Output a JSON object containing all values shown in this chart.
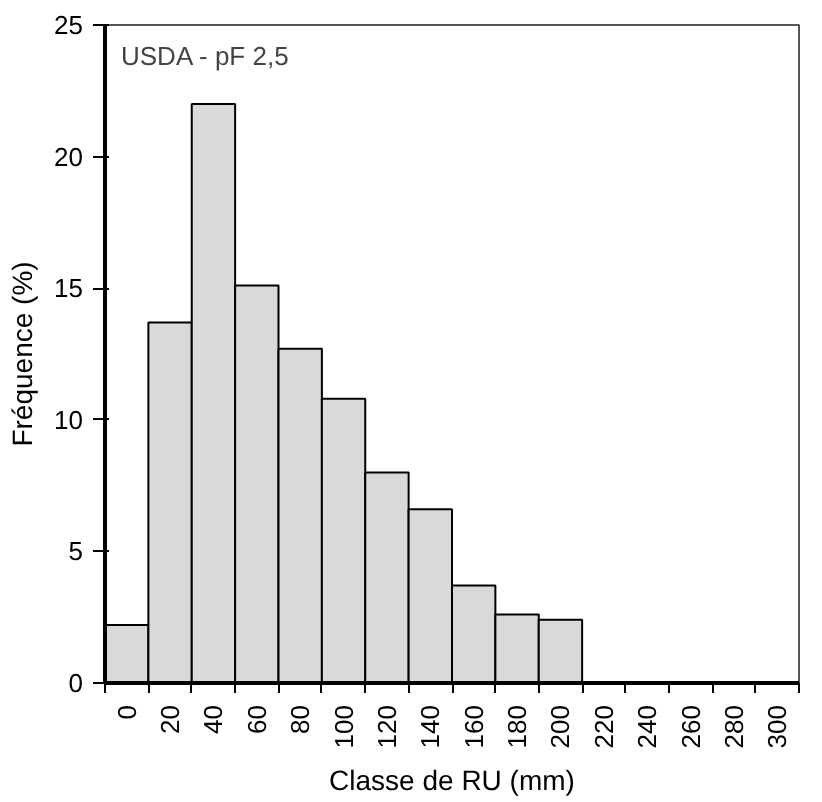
{
  "chart_data": {
    "type": "bar",
    "xlabel": "Classe de RU (mm)",
    "ylabel": "Fréquence (%)",
    "annotations": [
      "USDA - pF 2,5"
    ],
    "categories": [
      "0",
      "20",
      "40",
      "60",
      "80",
      "100",
      "120",
      "140",
      "160",
      "180",
      "200",
      "220",
      "240",
      "260",
      "280",
      "300"
    ],
    "values": [
      2.2,
      13.7,
      22,
      15.1,
      12.7,
      10.8,
      8.0,
      6.6,
      3.7,
      2.6,
      2.4,
      null,
      null,
      null,
      null,
      null
    ],
    "color": "#d9d9d9",
    "ylim": [
      0,
      25
    ],
    "yticks": [
      0,
      5,
      10,
      15,
      20,
      25
    ],
    "grid": false
  }
}
